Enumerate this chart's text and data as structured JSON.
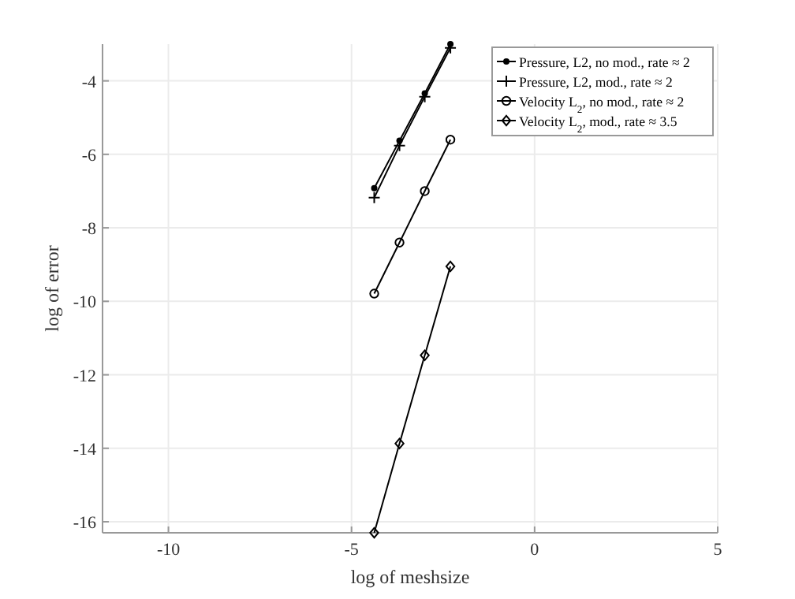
{
  "chart_data": {
    "type": "line",
    "xlabel": "log of meshsize",
    "ylabel": "log of error",
    "x": [
      -4.38,
      -3.69,
      -3.0,
      -2.3
    ],
    "series": [
      {
        "name": "Pressure, L2, no mod., rate ≈ 2",
        "color": "#000000",
        "marker": "circle",
        "values": [
          -6.92,
          -5.63,
          -4.34,
          -3.0
        ]
      },
      {
        "name": "Pressure, L2, mod., rate ≈ 2",
        "color": "#000000",
        "marker": "cross",
        "values": [
          -7.18,
          -5.76,
          -4.43,
          -3.1
        ]
      },
      {
        "name": "Velocity L$_{2}$, no mod., rate ≈ 2",
        "color": "#000000",
        "marker": "circle",
        "values": [
          -9.79,
          -8.4,
          -7.0,
          -5.6
        ]
      },
      {
        "name": "Velocity L$_{2}$, mod., rate ≈ 3.5",
        "color": "#000000",
        "marker": "diamond",
        "values": [
          -16.3,
          -13.87,
          -11.47,
          -9.05
        ]
      }
    ],
    "xlim": [
      -11.8,
      5
    ],
    "xticks": [
      -10,
      -5,
      0,
      5
    ],
    "ylim": [
      -16.3,
      -3
    ],
    "yticks": [
      -4,
      -6,
      -8,
      -10,
      -12,
      -14,
      -16
    ],
    "grid": true,
    "legend": "top right"
  }
}
